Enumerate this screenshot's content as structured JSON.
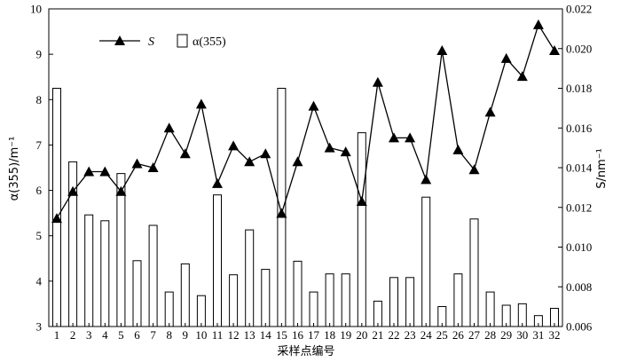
{
  "chart_data": {
    "type": "bar+line",
    "x_label": "采样点编号",
    "categories": [
      "1",
      "2",
      "3",
      "4",
      "5",
      "6",
      "7",
      "8",
      "9",
      "10",
      "11",
      "12",
      "13",
      "14",
      "15",
      "16",
      "17",
      "18",
      "19",
      "20",
      "21",
      "22",
      "23",
      "24",
      "25",
      "26",
      "27",
      "28",
      "29",
      "30",
      "31",
      "32"
    ],
    "left_axis": {
      "label": "α(355)/m⁻¹",
      "min": 3,
      "max": 10,
      "ticks": [
        "3",
        "4",
        "5",
        "6",
        "7",
        "8",
        "9",
        "10"
      ]
    },
    "right_axis": {
      "label": "S/nm⁻¹",
      "min": 0.006,
      "max": 0.022,
      "ticks": [
        "0.006",
        "0.008",
        "0.010",
        "0.012",
        "0.014",
        "0.016",
        "0.018",
        "0.020",
        "0.022"
      ]
    },
    "series": [
      {
        "name": "α(355)",
        "type": "bar",
        "axis": "left",
        "values": [
          8.25,
          6.63,
          5.46,
          5.33,
          6.37,
          4.45,
          5.23,
          3.76,
          4.38,
          3.68,
          5.9,
          4.14,
          5.13,
          4.26,
          8.25,
          4.44,
          3.76,
          4.16,
          4.16,
          7.27,
          3.56,
          4.08,
          4.08,
          5.85,
          3.44,
          4.16,
          5.37,
          3.76,
          3.47,
          3.5,
          3.24,
          3.4
        ]
      },
      {
        "name": "S",
        "type": "line",
        "axis": "right",
        "marker": "triangle",
        "values": [
          0.01145,
          0.0128,
          0.0138,
          0.0138,
          0.0128,
          0.0142,
          0.014,
          0.016,
          0.0147,
          0.0172,
          0.0132,
          0.0151,
          0.0143,
          0.0147,
          0.0117,
          0.0143,
          0.0171,
          0.015,
          0.0148,
          0.0123,
          0.0183,
          0.0155,
          0.0155,
          0.0134,
          0.0199,
          0.0149,
          0.0139,
          0.0168,
          0.0195,
          0.0186,
          0.0212,
          0.0199
        ]
      }
    ],
    "legend": [
      {
        "label": "S",
        "marker": "triangle-line"
      },
      {
        "label": "α(355)",
        "marker": "bar"
      }
    ],
    "legend_position": "top-left",
    "grid": false
  }
}
